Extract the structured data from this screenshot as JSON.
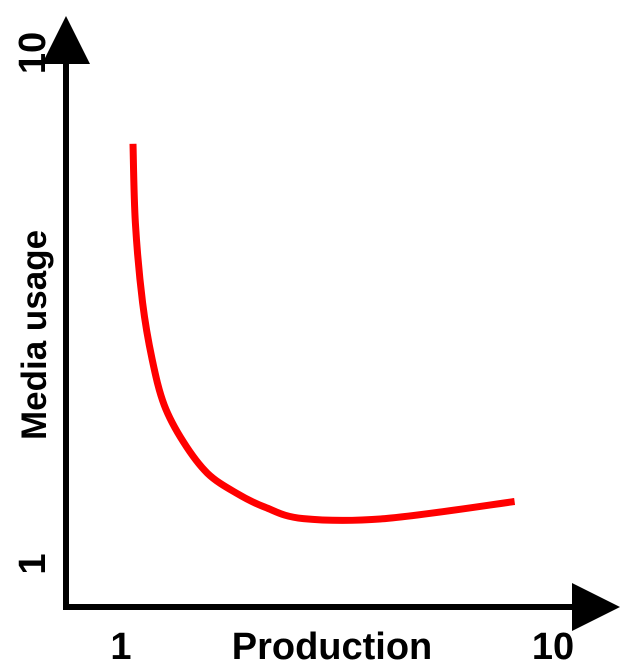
{
  "chart_data": {
    "type": "line",
    "title": "",
    "xlabel": "Production",
    "ylabel": "Media usage",
    "x_tick_labels": [
      "1",
      "10"
    ],
    "y_tick_labels": [
      "1",
      "10"
    ],
    "xlim": [
      1,
      10
    ],
    "ylim": [
      1,
      10
    ],
    "grid": false,
    "legend": "none",
    "series": [
      {
        "color": "#ff0000",
        "x": [
          1.25,
          1.3,
          1.45,
          1.65,
          1.9,
          2.3,
          2.8,
          3.4,
          4.0,
          4.8,
          6.5,
          9.2
        ],
        "y": [
          8.4,
          7.0,
          5.6,
          4.6,
          3.8,
          3.15,
          2.6,
          2.25,
          2.0,
          1.8,
          1.8,
          2.1
        ]
      }
    ]
  }
}
